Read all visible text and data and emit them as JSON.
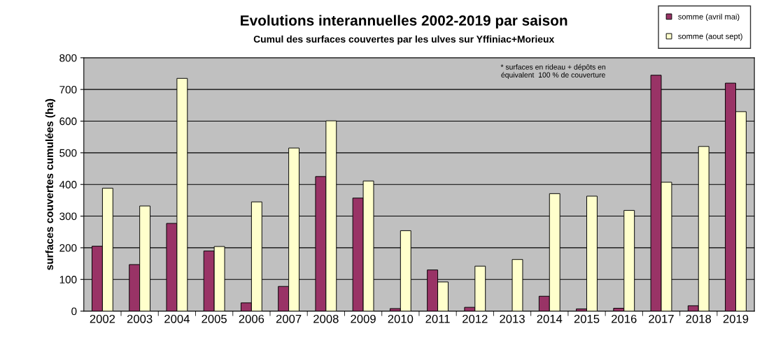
{
  "chart_data": {
    "type": "bar",
    "title": "Evolutions interannuelles 2002-2019 par saison",
    "subtitle": "Cumul des surfaces couvertes par les ulves sur Yffiniac+Morieux",
    "ylabel": "surfaces couvertes cumulées (ha)",
    "categories": [
      "2002",
      "2003",
      "2004",
      "2005",
      "2006",
      "2007",
      "2008",
      "2009",
      "2010",
      "2011",
      "2012",
      "2013",
      "2014",
      "2015",
      "2016",
      "2017",
      "2018",
      "2019"
    ],
    "series": [
      {
        "name": "somme (avril mai)",
        "color": "#993366",
        "values": [
          205,
          147,
          277,
          190,
          26,
          78,
          425,
          357,
          8,
          130,
          12,
          null,
          47,
          7,
          9,
          745,
          17,
          720
        ]
      },
      {
        "name": "somme (aout sept)",
        "color": "#ffffcc",
        "values": [
          388,
          332,
          735,
          204,
          345,
          515,
          601,
          411,
          254,
          92,
          142,
          163,
          371,
          363,
          318,
          407,
          520,
          630
        ]
      }
    ],
    "ylim": [
      0,
      800
    ],
    "yticks": [
      0,
      100,
      200,
      300,
      400,
      500,
      600,
      700,
      800
    ],
    "grid": "y",
    "legend": "top right",
    "annotations": [
      "* surfaces en rideau + dépôts en\néquivalent  100 % de couverture"
    ]
  }
}
